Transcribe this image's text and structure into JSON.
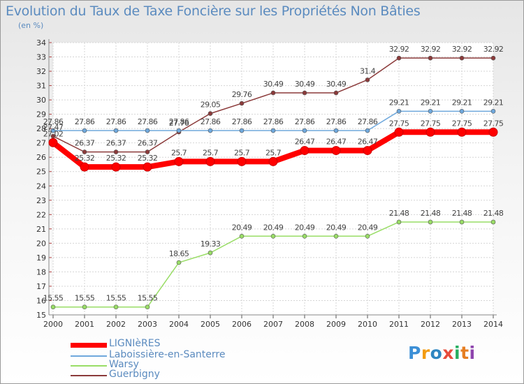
{
  "chart_data": {
    "type": "line",
    "title": "Evolution du Taux de Taxe Foncière sur les Propriétés Non Bâties",
    "ylabel": "(en %)",
    "xlabel": "",
    "ylim": [
      15,
      34
    ],
    "categories": [
      "2000",
      "2001",
      "2002",
      "2003",
      "2004",
      "2005",
      "2006",
      "2007",
      "2008",
      "2009",
      "2010",
      "2011",
      "2012",
      "2013",
      "2014"
    ],
    "y_ticks": [
      15,
      16,
      17,
      18,
      19,
      20,
      21,
      22,
      23,
      24,
      25,
      26,
      27,
      28,
      29,
      30,
      31,
      32,
      33,
      34
    ],
    "series": [
      {
        "name": "LIGNIèRES",
        "color": "#ff0000",
        "values": [
          27.02,
          25.32,
          25.32,
          25.32,
          25.7,
          25.7,
          25.7,
          25.7,
          26.47,
          26.47,
          26.47,
          27.75,
          27.75,
          27.75,
          27.75
        ],
        "labels": [
          "27.02",
          "25.32",
          "25.32",
          "25.32",
          "25.7",
          "25.7",
          "25.7",
          "25.7",
          "26.47",
          "26.47",
          "26.47",
          "27.75",
          "27.75",
          "27.75",
          "27.75"
        ]
      },
      {
        "name": "Laboissière-en-Santerre",
        "color": "#6fa8dc",
        "values": [
          27.86,
          27.86,
          27.86,
          27.86,
          27.86,
          27.86,
          27.86,
          27.86,
          27.86,
          27.86,
          27.86,
          29.21,
          29.21,
          29.21,
          29.21
        ],
        "labels": [
          "27.86",
          "27.86",
          "27.86",
          "27.86",
          "27.86",
          "27.86",
          "27.86",
          "27.86",
          "27.86",
          "27.86",
          "27.86",
          "29.21",
          "29.21",
          "29.21",
          "29.21"
        ]
      },
      {
        "name": "Warsy",
        "color": "#99dd66",
        "values": [
          15.55,
          15.55,
          15.55,
          15.55,
          18.65,
          19.33,
          20.49,
          20.49,
          20.49,
          20.49,
          20.49,
          21.48,
          21.48,
          21.48,
          21.48
        ],
        "labels": [
          "15.55",
          "15.55",
          "15.55",
          "15.55",
          "18.65",
          "19.33",
          "20.49",
          "20.49",
          "20.49",
          "20.49",
          "20.49",
          "21.48",
          "21.48",
          "21.48",
          "21.48"
        ]
      },
      {
        "name": "Guerbigny",
        "color": "#8b3a3a",
        "values": [
          27.47,
          26.37,
          26.37,
          26.37,
          27.76,
          29.05,
          29.76,
          30.49,
          30.49,
          30.49,
          31.4,
          32.92,
          32.92,
          32.92,
          32.92
        ],
        "labels": [
          "27.47",
          "26.37",
          "26.37",
          "26.37",
          "27.76",
          "29.05",
          "29.76",
          "30.49",
          "30.49",
          "30.49",
          "31.4",
          "32.92",
          "32.92",
          "32.92",
          "32.92"
        ]
      }
    ]
  },
  "legend": [
    {
      "name": "LIGNIèRES",
      "color": "#ff0000"
    },
    {
      "name": "Laboissière-en-Santerre",
      "color": "#6fa8dc"
    },
    {
      "name": "Warsy",
      "color": "#99dd66"
    },
    {
      "name": "Guerbigny",
      "color": "#8b3a3a"
    }
  ],
  "logo": {
    "letters": [
      "P",
      "r",
      "o",
      "x",
      "i",
      "t",
      "i"
    ],
    "colors": [
      "#3c8fd6",
      "#f39c12",
      "#2e86c1",
      "#e74c3c",
      "#27ae60",
      "#e67e22",
      "#8e44ad"
    ]
  }
}
